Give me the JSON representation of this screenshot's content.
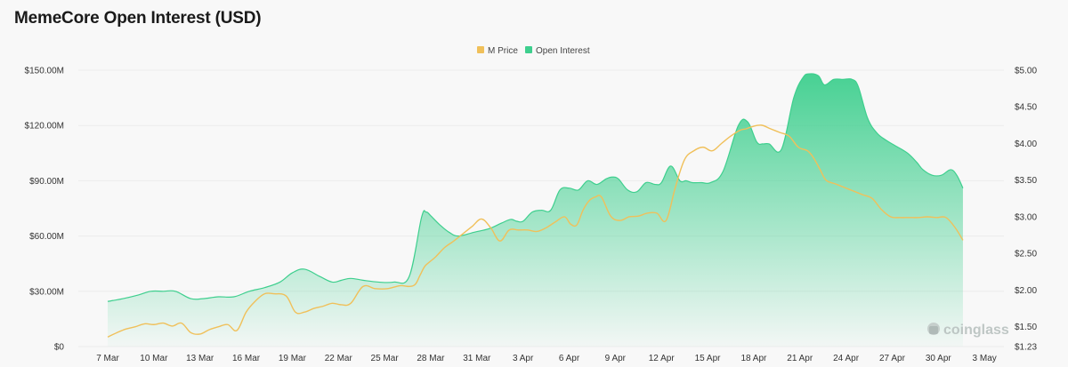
{
  "title": "MemeCore Open Interest (USD)",
  "watermark": "coinglass",
  "colors": {
    "price": "#f0c05a",
    "oi": "#3ecf8e",
    "background": "#f8f8f8"
  },
  "chart_data": {
    "type": "area",
    "x_tick_labels": [
      "7 Mar",
      "10 Mar",
      "13 Mar",
      "16 Mar",
      "19 Mar",
      "22 Mar",
      "25 Mar",
      "28 Mar",
      "31 Mar",
      "3 Apr",
      "6 Apr",
      "9 Apr",
      "12 Apr",
      "15 Apr",
      "18 Apr",
      "21 Apr",
      "24 Apr",
      "27 Apr",
      "30 Apr",
      "3 May"
    ],
    "y_left_ticks": [
      "$0",
      "$30.00M",
      "$60.00M",
      "$90.00M",
      "$120.00M",
      "$150.00M"
    ],
    "y_right_ticks": [
      "$1.23",
      "$1.50",
      "$2.00",
      "$2.50",
      "$3.00",
      "$3.50",
      "$4.00",
      "$4.50",
      "$5.00"
    ],
    "ylim_left": [
      0,
      150
    ],
    "ylim_right": [
      1.23,
      5.0
    ],
    "legend": [
      "M Price",
      "Open Interest"
    ],
    "legend_position": "top-center",
    "grid": "horizontal",
    "series": [
      {
        "name": "Open Interest",
        "unit": "USD millions",
        "axis": "left",
        "x": [
          5.0,
          6.0,
          7.0,
          7.8,
          8.6,
          9.4,
          10.4,
          11.2,
          12.2,
          13.2,
          14.2,
          15.2,
          16.2,
          17.0,
          17.8,
          18.8,
          19.6,
          20.2,
          20.8,
          21.6,
          22.6,
          23.6,
          24.6,
          25.4,
          25.7,
          26.0,
          26.6,
          27.2,
          27.8,
          28.8,
          29.8,
          30.6,
          31.2,
          31.6,
          32.0,
          32.6,
          33.2,
          33.8,
          34.4,
          35.0,
          35.6,
          36.2,
          36.8,
          37.4,
          37.8,
          38.2,
          38.8,
          39.4,
          40.0,
          40.6,
          41.0,
          41.6,
          42.2,
          42.6,
          43.0,
          43.6,
          44.2,
          45.0,
          46.0,
          46.6,
          47.2,
          47.6,
          48.0,
          48.8,
          49.6,
          50.2,
          50.6,
          51.2,
          51.6,
          52.2,
          52.8,
          53.4,
          53.8,
          54.4,
          55.0,
          55.6,
          56.2,
          57.0,
          57.6,
          58.0,
          58.6,
          59.2,
          59.8,
          60.2,
          60.6
        ],
        "values": [
          24.5,
          26,
          28,
          30,
          30,
          30,
          26,
          26,
          27,
          27,
          30,
          32,
          35,
          40,
          42,
          38,
          35,
          36,
          37,
          36,
          35,
          35,
          38,
          70,
          73,
          71,
          66,
          62,
          60,
          62,
          64,
          67,
          69,
          68,
          68,
          73,
          74,
          74,
          85,
          86,
          85,
          90,
          88,
          91,
          92,
          91,
          85,
          84,
          89,
          88,
          89,
          98,
          90,
          90,
          89,
          89,
          89,
          95,
          120,
          122,
          111,
          110,
          110,
          107,
          135,
          146,
          148,
          147,
          142,
          145,
          145,
          145,
          141,
          124,
          116,
          112,
          109,
          105,
          100,
          96,
          93,
          93,
          96,
          93,
          86
        ],
        "color": "#3ecf8e"
      },
      {
        "name": "M Price",
        "unit": "USD",
        "axis": "right",
        "x": [
          5.0,
          5.6,
          6.2,
          6.8,
          7.4,
          8.0,
          8.6,
          9.2,
          9.8,
          10.4,
          11.0,
          11.6,
          12.2,
          12.8,
          13.4,
          14.0,
          14.6,
          15.2,
          15.8,
          16.6,
          17.2,
          17.8,
          18.4,
          19.0,
          19.6,
          20.2,
          20.8,
          21.6,
          22.4,
          23.2,
          24.0,
          24.6,
          25.0,
          25.3,
          25.6,
          25.9,
          26.3,
          26.9,
          27.5,
          28.1,
          28.7,
          29.3,
          29.9,
          30.5,
          31.1,
          31.7,
          32.3,
          32.9,
          33.5,
          34.1,
          34.7,
          35.1,
          35.5,
          35.9,
          36.3,
          36.7,
          37.1,
          37.7,
          38.3,
          38.9,
          39.5,
          40.1,
          40.7,
          41.3,
          41.9,
          42.5,
          43.1,
          43.7,
          44.3,
          44.9,
          45.5,
          46.1,
          46.5,
          46.9,
          47.5,
          48.1,
          48.7,
          49.3,
          49.9,
          50.5,
          50.9,
          51.3,
          51.7,
          52.3,
          52.9,
          53.5,
          54.1,
          54.7,
          55.3,
          55.9,
          56.5,
          57.1,
          57.7,
          58.3,
          58.9,
          59.5,
          60.1,
          60.6
        ],
        "values": [
          1.36,
          1.42,
          1.47,
          1.5,
          1.54,
          1.53,
          1.55,
          1.51,
          1.55,
          1.42,
          1.4,
          1.46,
          1.5,
          1.53,
          1.45,
          1.7,
          1.85,
          1.95,
          1.95,
          1.92,
          1.7,
          1.7,
          1.75,
          1.78,
          1.82,
          1.8,
          1.82,
          2.05,
          2.02,
          2.02,
          2.06,
          2.05,
          2.08,
          2.2,
          2.32,
          2.38,
          2.45,
          2.58,
          2.67,
          2.77,
          2.87,
          2.97,
          2.85,
          2.67,
          2.82,
          2.82,
          2.82,
          2.8,
          2.85,
          2.93,
          3.0,
          2.9,
          2.89,
          3.09,
          3.22,
          3.27,
          3.27,
          3.01,
          2.95,
          3.0,
          3.01,
          3.05,
          3.05,
          2.95,
          3.4,
          3.78,
          3.9,
          3.95,
          3.9,
          4.0,
          4.1,
          4.18,
          4.2,
          4.23,
          4.25,
          4.2,
          4.15,
          4.1,
          3.95,
          3.9,
          3.8,
          3.65,
          3.5,
          3.45,
          3.4,
          3.35,
          3.3,
          3.25,
          3.1,
          3.0,
          2.99,
          2.99,
          2.99,
          3.0,
          2.99,
          2.99,
          2.85,
          2.68
        ],
        "color": "#f0c05a"
      }
    ]
  }
}
